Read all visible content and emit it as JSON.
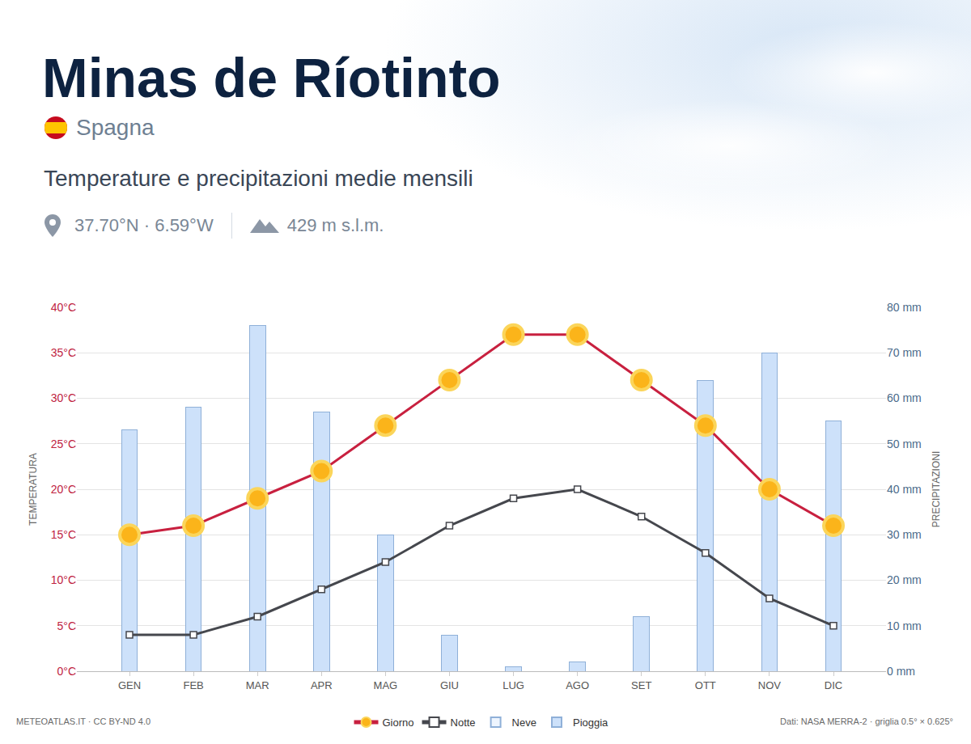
{
  "chart_data": {
    "type": "combo",
    "title": "Minas de Ríotinto",
    "subtitle": "Spagna",
    "description": "Temperature e precipitazioni medie mensili",
    "location": "37.70°N · 6.59°W",
    "elevation": "429 m s.l.m.",
    "credit": "METEOATLAS.IT · CC BY-ND 4.0",
    "source": "Dati: NASA MERRA-2 · griglia 0.5° × 0.625°",
    "y_label": "TEMPERATURA",
    "y2_label": "PRECIPITAZIONI",
    "categories": [
      "GEN",
      "FEB",
      "MAR",
      "APR",
      "MAG",
      "GIU",
      "LUG",
      "AGO",
      "SET",
      "OTT",
      "NOV",
      "DIC"
    ],
    "ylim": [
      0,
      40
    ],
    "yticks": [
      {
        "value": 0,
        "label": "0°C"
      },
      {
        "value": 5,
        "label": "5°C"
      },
      {
        "value": 10,
        "label": "10°C"
      },
      {
        "value": 15,
        "label": "15°C"
      },
      {
        "value": 20,
        "label": "20°C"
      },
      {
        "value": 25,
        "label": "25°C"
      },
      {
        "value": 30,
        "label": "30°C"
      },
      {
        "value": 35,
        "label": "35°C"
      },
      {
        "value": 40,
        "label": "40°C"
      }
    ],
    "y2lim": [
      0,
      80
    ],
    "y2ticks": [
      {
        "value": 0,
        "label": "0 mm"
      },
      {
        "value": 10,
        "label": "10 mm"
      },
      {
        "value": 20,
        "label": "20 mm"
      },
      {
        "value": 30,
        "label": "30 mm"
      },
      {
        "value": 40,
        "label": "40 mm"
      },
      {
        "value": 50,
        "label": "50 mm"
      },
      {
        "value": 60,
        "label": "60 mm"
      },
      {
        "value": 70,
        "label": "70 mm"
      },
      {
        "value": 80,
        "label": "80 mm"
      }
    ],
    "grid": true,
    "stacked": true,
    "legend": "bottom",
    "series": [
      {
        "name": "Giorno",
        "type": "line",
        "color": "#c8203f",
        "marker": "circle",
        "values": [
          15,
          16,
          19,
          22,
          27,
          32,
          37,
          37,
          32,
          27,
          20,
          16
        ]
      },
      {
        "name": "Notte",
        "type": "line",
        "color": "#45474d",
        "marker": "square",
        "values": [
          4,
          4,
          6,
          9,
          12,
          16,
          19,
          20,
          17,
          13,
          8,
          5
        ]
      },
      {
        "name": "Neve",
        "type": "bar",
        "axis": "y2",
        "color": "#eef5fe",
        "values": [
          0,
          0,
          0,
          0,
          0,
          0,
          0,
          0,
          0,
          0,
          0,
          0
        ]
      },
      {
        "name": "Pioggia",
        "type": "bar",
        "axis": "y2",
        "color": "#cde1fa",
        "values": [
          53,
          58,
          76,
          57,
          30,
          8,
          1,
          2,
          12,
          64,
          70,
          55
        ]
      }
    ]
  }
}
